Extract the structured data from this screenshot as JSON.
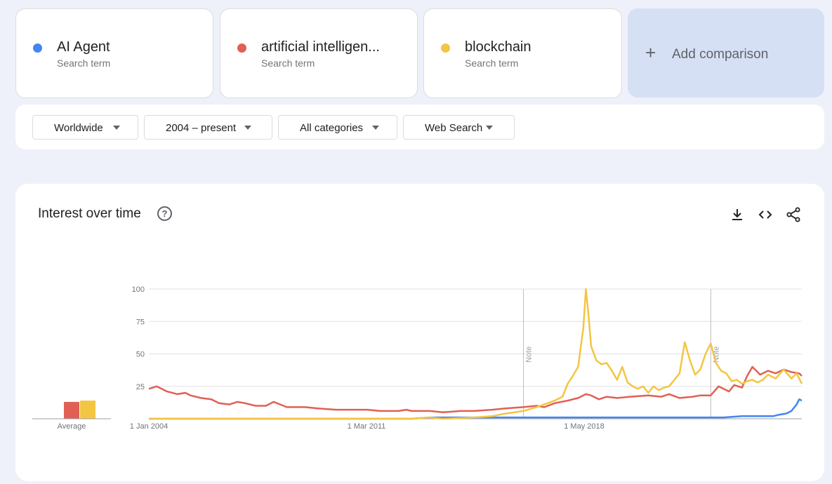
{
  "terms": [
    {
      "name": "AI Agent",
      "sub": "Search term",
      "color": "#4285f4"
    },
    {
      "name": "artificial intelligen...",
      "sub": "Search term",
      "color": "#e06055"
    },
    {
      "name": "blockchain",
      "sub": "Search term",
      "color": "#f4c542"
    }
  ],
  "add_comparison": {
    "icon": "+",
    "label": "Add comparison"
  },
  "filters": [
    {
      "label": "Worldwide"
    },
    {
      "label": "2004 – present"
    },
    {
      "label": "All categories"
    },
    {
      "label": "Web Search"
    }
  ],
  "panel": {
    "title": "Interest over time",
    "help": "?",
    "icons": [
      "download-icon",
      "embed-code-icon",
      "share-icon"
    ]
  },
  "average_label": "Average",
  "chart_data": {
    "type": "line",
    "x_start": "2004-01",
    "x_end": "2024-12",
    "x_tick_labels": [
      "1 Jan 2004",
      "1 Mar 2011",
      "1 May 2018"
    ],
    "y_ticks": [
      25,
      50,
      75,
      100
    ],
    "ylim": [
      0,
      100
    ],
    "grid": true,
    "notes": [
      {
        "label": "Note",
        "date": "2016-01"
      },
      {
        "label": "Note",
        "date": "2022-01"
      }
    ],
    "averages": [
      {
        "series": "artificial intelligen...",
        "value": 13
      },
      {
        "series": "blockchain",
        "value": 14
      }
    ],
    "series": [
      {
        "name": "AI Agent",
        "color": "#4285f4",
        "points": [
          [
            "2004-01",
            0
          ],
          [
            "2012-06",
            0
          ],
          [
            "2013-01",
            1
          ],
          [
            "2014-06",
            1
          ],
          [
            "2016-06",
            1
          ],
          [
            "2019-06",
            1
          ],
          [
            "2022-06",
            1
          ],
          [
            "2023-01",
            2
          ],
          [
            "2023-06",
            2
          ],
          [
            "2024-01",
            2
          ],
          [
            "2024-03",
            3
          ],
          [
            "2024-06",
            4
          ],
          [
            "2024-08",
            6
          ],
          [
            "2024-10",
            11
          ],
          [
            "2024-11",
            15
          ],
          [
            "2024-12",
            14
          ]
        ]
      },
      {
        "name": "artificial intelligen...",
        "color": "#e06055",
        "points": [
          [
            "2004-01",
            23
          ],
          [
            "2004-04",
            25
          ],
          [
            "2004-08",
            21
          ],
          [
            "2004-12",
            19
          ],
          [
            "2005-03",
            20
          ],
          [
            "2005-05",
            18
          ],
          [
            "2005-09",
            16
          ],
          [
            "2006-01",
            15
          ],
          [
            "2006-04",
            12
          ],
          [
            "2006-08",
            11
          ],
          [
            "2006-11",
            13
          ],
          [
            "2007-02",
            12
          ],
          [
            "2007-06",
            10
          ],
          [
            "2007-10",
            10
          ],
          [
            "2008-01",
            13
          ],
          [
            "2008-06",
            9
          ],
          [
            "2009-01",
            9
          ],
          [
            "2009-06",
            8
          ],
          [
            "2010-01",
            7
          ],
          [
            "2010-06",
            7
          ],
          [
            "2011-01",
            7
          ],
          [
            "2011-06",
            6
          ],
          [
            "2012-01",
            6
          ],
          [
            "2012-04",
            7
          ],
          [
            "2012-06",
            6
          ],
          [
            "2013-01",
            6
          ],
          [
            "2013-06",
            5
          ],
          [
            "2014-01",
            6
          ],
          [
            "2014-06",
            6
          ],
          [
            "2015-01",
            7
          ],
          [
            "2015-06",
            8
          ],
          [
            "2016-01",
            9
          ],
          [
            "2016-06",
            10
          ],
          [
            "2016-09",
            9
          ],
          [
            "2017-01",
            12
          ],
          [
            "2017-06",
            14
          ],
          [
            "2017-10",
            16
          ],
          [
            "2018-01",
            19
          ],
          [
            "2018-03",
            18
          ],
          [
            "2018-06",
            15
          ],
          [
            "2018-09",
            17
          ],
          [
            "2019-01",
            16
          ],
          [
            "2019-06",
            17
          ],
          [
            "2020-01",
            18
          ],
          [
            "2020-06",
            17
          ],
          [
            "2020-09",
            19
          ],
          [
            "2021-01",
            16
          ],
          [
            "2021-06",
            17
          ],
          [
            "2021-09",
            18
          ],
          [
            "2022-01",
            18
          ],
          [
            "2022-04",
            25
          ],
          [
            "2022-08",
            21
          ],
          [
            "2022-10",
            26
          ],
          [
            "2023-01",
            24
          ],
          [
            "2023-03",
            33
          ],
          [
            "2023-05",
            40
          ],
          [
            "2023-08",
            34
          ],
          [
            "2023-11",
            37
          ],
          [
            "2024-02",
            35
          ],
          [
            "2024-05",
            38
          ],
          [
            "2024-08",
            36
          ],
          [
            "2024-11",
            35
          ],
          [
            "2024-12",
            33
          ]
        ]
      },
      {
        "name": "blockchain",
        "color": "#f4c542",
        "points": [
          [
            "2004-01",
            0
          ],
          [
            "2012-06",
            0
          ],
          [
            "2013-01",
            1
          ],
          [
            "2013-06",
            0
          ],
          [
            "2014-06",
            1
          ],
          [
            "2015-01",
            2
          ],
          [
            "2015-06",
            4
          ],
          [
            "2016-01",
            6
          ],
          [
            "2016-06",
            9
          ],
          [
            "2016-09",
            11
          ],
          [
            "2017-01",
            14
          ],
          [
            "2017-04",
            17
          ],
          [
            "2017-06",
            27
          ],
          [
            "2017-08",
            33
          ],
          [
            "2017-10",
            40
          ],
          [
            "2017-12",
            70
          ],
          [
            "2018-01",
            100
          ],
          [
            "2018-02",
            80
          ],
          [
            "2018-03",
            56
          ],
          [
            "2018-05",
            45
          ],
          [
            "2018-07",
            42
          ],
          [
            "2018-09",
            43
          ],
          [
            "2018-11",
            37
          ],
          [
            "2019-01",
            30
          ],
          [
            "2019-03",
            40
          ],
          [
            "2019-05",
            28
          ],
          [
            "2019-07",
            25
          ],
          [
            "2019-09",
            23
          ],
          [
            "2019-11",
            25
          ],
          [
            "2020-01",
            20
          ],
          [
            "2020-03",
            25
          ],
          [
            "2020-05",
            22
          ],
          [
            "2020-07",
            24
          ],
          [
            "2020-09",
            25
          ],
          [
            "2021-01",
            35
          ],
          [
            "2021-03",
            59
          ],
          [
            "2021-05",
            45
          ],
          [
            "2021-07",
            34
          ],
          [
            "2021-09",
            38
          ],
          [
            "2021-11",
            50
          ],
          [
            "2022-01",
            58
          ],
          [
            "2022-03",
            43
          ],
          [
            "2022-05",
            37
          ],
          [
            "2022-07",
            35
          ],
          [
            "2022-09",
            29
          ],
          [
            "2022-11",
            30
          ],
          [
            "2023-01",
            27
          ],
          [
            "2023-03",
            29
          ],
          [
            "2023-05",
            30
          ],
          [
            "2023-07",
            28
          ],
          [
            "2023-09",
            30
          ],
          [
            "2023-11",
            34
          ],
          [
            "2024-02",
            31
          ],
          [
            "2024-05",
            38
          ],
          [
            "2024-08",
            31
          ],
          [
            "2024-10",
            35
          ],
          [
            "2024-12",
            27
          ]
        ]
      }
    ]
  }
}
